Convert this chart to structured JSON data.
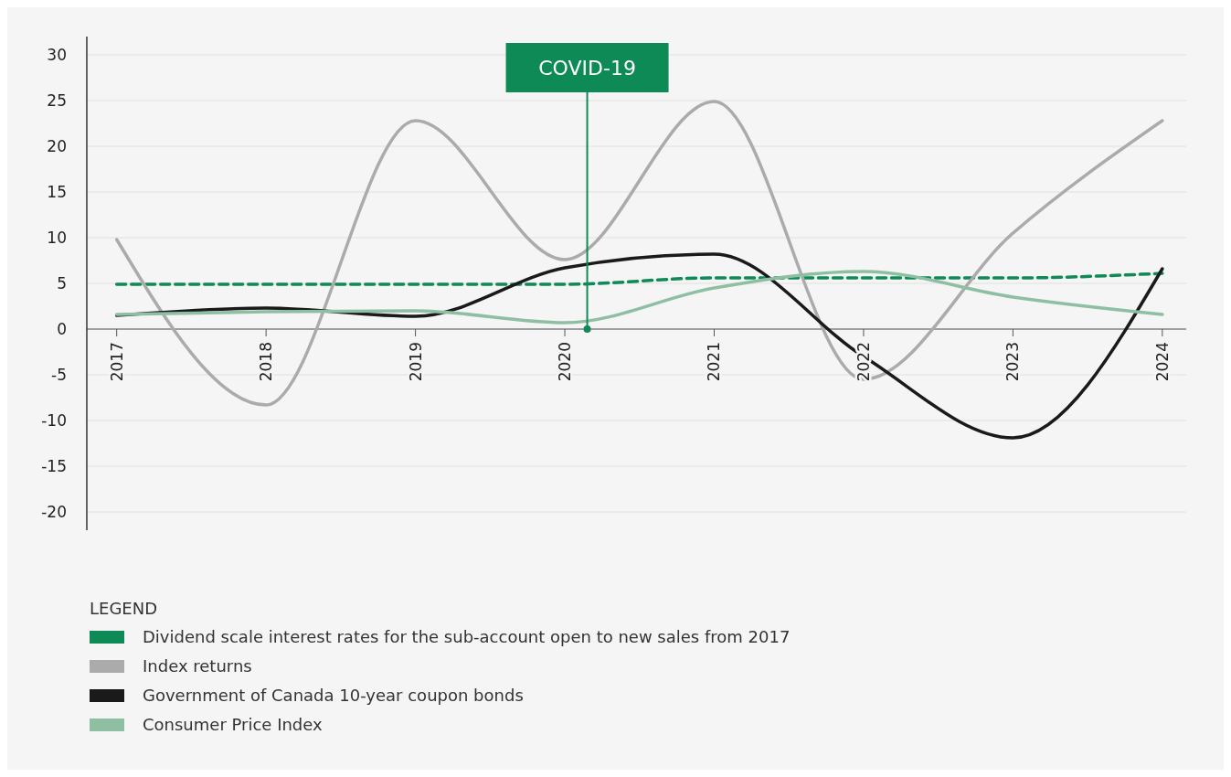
{
  "chart_data": {
    "type": "line",
    "x": [
      2017,
      2018,
      2019,
      2020,
      2021,
      2022,
      2023,
      2024
    ],
    "xlim": [
      2016.8,
      2024.16
    ],
    "xticks": [
      2017,
      2018,
      2019,
      2020,
      2021,
      2022,
      2023,
      2024
    ],
    "ylim": [
      -22,
      32
    ],
    "yticks": [
      -20,
      -15,
      -10,
      -5,
      0,
      5,
      10,
      15,
      20,
      25,
      30
    ],
    "grid": "y",
    "legend": "bottom",
    "legend_title": "LEGEND",
    "marker": "none",
    "series": [
      {
        "name": "Dividend scale interest rates for the sub-account open to new sales from 2017",
        "color": "#0e8a57",
        "line_style": "dashed",
        "values": [
          4.9,
          4.9,
          4.9,
          4.9,
          5.6,
          5.6,
          5.6,
          6.1
        ]
      },
      {
        "name": "Index returns",
        "color": "#ababab",
        "line_style": "solid",
        "values": [
          9.8,
          -8.3,
          22.8,
          7.6,
          24.9,
          -5.5,
          10.5,
          22.8
        ]
      },
      {
        "name": "Government of Canada 10-year coupon bonds",
        "color": "#1a1a1a",
        "line_style": "solid",
        "values": [
          1.5,
          2.3,
          1.4,
          6.7,
          8.2,
          -3.0,
          -11.9,
          6.6
        ]
      },
      {
        "name": "Consumer Price Index",
        "color": "#8fbfa3",
        "line_style": "solid",
        "values": [
          1.6,
          1.9,
          2.0,
          0.7,
          4.5,
          6.3,
          3.5,
          1.6
        ]
      }
    ],
    "ref_lines": [
      {
        "axis": "x",
        "value": 2020.15,
        "label": "COVID-19",
        "color": "#0e8a57"
      }
    ]
  }
}
